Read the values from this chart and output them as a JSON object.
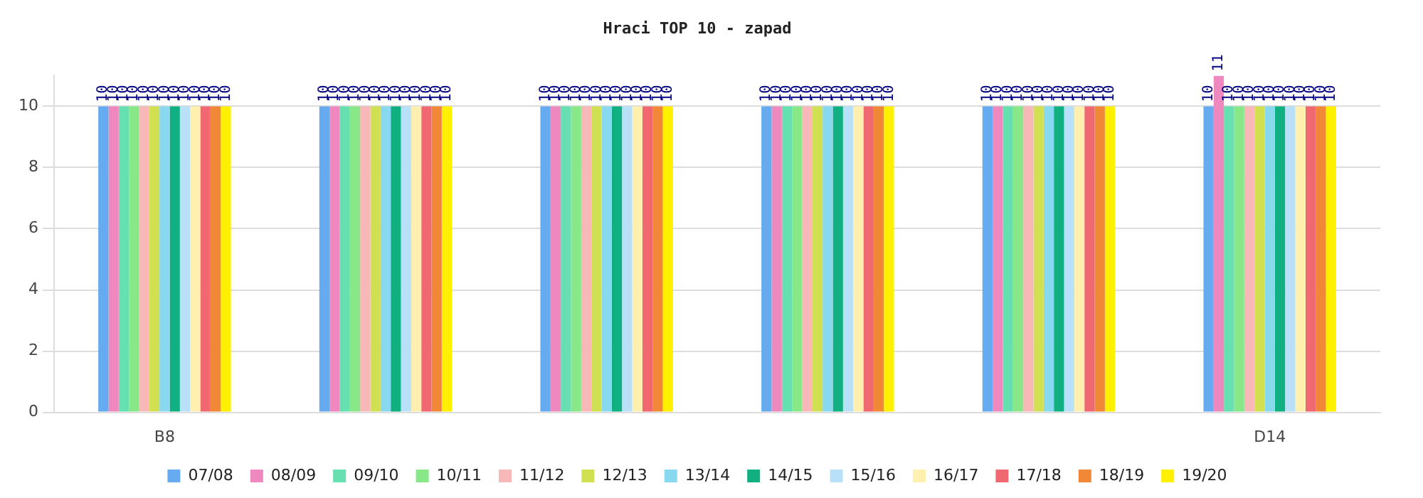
{
  "chart_data": {
    "type": "bar",
    "title": "Hraci TOP 10 - zapad",
    "categories": [
      "B8",
      null,
      null,
      null,
      null,
      "D14"
    ],
    "ylim": [
      0,
      11
    ],
    "yticks": [
      0,
      2,
      4,
      6,
      8,
      10
    ],
    "grid": "y",
    "legend": "bottom",
    "data_labels": true,
    "series": [
      {
        "name": "07/08",
        "color": "#66aaf0",
        "values": [
          10,
          10,
          10,
          10,
          10,
          10
        ]
      },
      {
        "name": "08/09",
        "color": "#f088c0",
        "values": [
          10,
          10,
          10,
          10,
          10,
          11
        ]
      },
      {
        "name": "09/10",
        "color": "#66e0b0",
        "values": [
          10,
          10,
          10,
          10,
          10,
          10
        ]
      },
      {
        "name": "10/11",
        "color": "#88e888",
        "values": [
          10,
          10,
          10,
          10,
          10,
          10
        ]
      },
      {
        "name": "11/12",
        "color": "#f8b8b8",
        "values": [
          10,
          10,
          10,
          10,
          10,
          10
        ]
      },
      {
        "name": "12/13",
        "color": "#d0e050",
        "values": [
          10,
          10,
          10,
          10,
          10,
          10
        ]
      },
      {
        "name": "13/14",
        "color": "#88d8f0",
        "values": [
          10,
          10,
          10,
          10,
          10,
          10
        ]
      },
      {
        "name": "14/15",
        "color": "#10b080",
        "values": [
          10,
          10,
          10,
          10,
          10,
          10
        ]
      },
      {
        "name": "15/16",
        "color": "#b8e0f8",
        "values": [
          10,
          10,
          10,
          10,
          10,
          10
        ]
      },
      {
        "name": "16/17",
        "color": "#fff0b0",
        "values": [
          10,
          10,
          10,
          10,
          10,
          10
        ]
      },
      {
        "name": "17/18",
        "color": "#f06870",
        "values": [
          10,
          10,
          10,
          10,
          10,
          10
        ]
      },
      {
        "name": "18/19",
        "color": "#f08838",
        "values": [
          10,
          10,
          10,
          10,
          10,
          10
        ]
      },
      {
        "name": "19/20",
        "color": "#fff000",
        "values": [
          10,
          10,
          10,
          10,
          10,
          10
        ]
      }
    ]
  }
}
